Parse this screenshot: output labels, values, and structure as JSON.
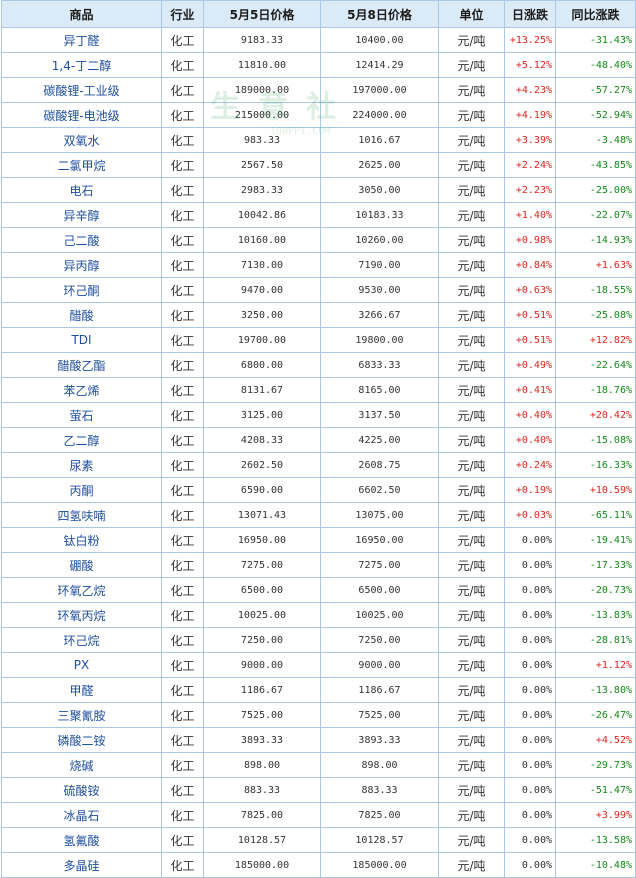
{
  "watermark": {
    "main": "生意社",
    "sub": "100PPI.COM"
  },
  "header": {
    "name": "商品",
    "industry": "行业",
    "price1": "5月5日价格",
    "price2": "5月8日价格",
    "unit": "单位",
    "day_change": "日涨跌",
    "yoy_change": "同比涨跌"
  },
  "colors": {
    "up": "#e0241c",
    "down": "#138a18",
    "header_bg": "#dbeaf7",
    "border": "#aac8e4",
    "name": "#1f4fa0"
  },
  "rows": [
    {
      "name": "异丁醛",
      "industry": "化工",
      "price1": "9183.33",
      "price2": "10400.00",
      "unit": "元/吨",
      "day": "+13.25%",
      "yoy": "-31.43%"
    },
    {
      "name": "1,4-丁二醇",
      "industry": "化工",
      "price1": "11810.00",
      "price2": "12414.29",
      "unit": "元/吨",
      "day": "+5.12%",
      "yoy": "-48.40%"
    },
    {
      "name": "碳酸锂-工业级",
      "industry": "化工",
      "price1": "189000.00",
      "price2": "197000.00",
      "unit": "元/吨",
      "day": "+4.23%",
      "yoy": "-57.27%"
    },
    {
      "name": "碳酸锂-电池级",
      "industry": "化工",
      "price1": "215000.00",
      "price2": "224000.00",
      "unit": "元/吨",
      "day": "+4.19%",
      "yoy": "-52.94%"
    },
    {
      "name": "双氧水",
      "industry": "化工",
      "price1": "983.33",
      "price2": "1016.67",
      "unit": "元/吨",
      "day": "+3.39%",
      "yoy": "-3.48%"
    },
    {
      "name": "二氯甲烷",
      "industry": "化工",
      "price1": "2567.50",
      "price2": "2625.00",
      "unit": "元/吨",
      "day": "+2.24%",
      "yoy": "-43.85%"
    },
    {
      "name": "电石",
      "industry": "化工",
      "price1": "2983.33",
      "price2": "3050.00",
      "unit": "元/吨",
      "day": "+2.23%",
      "yoy": "-25.00%"
    },
    {
      "name": "异辛醇",
      "industry": "化工",
      "price1": "10042.86",
      "price2": "10183.33",
      "unit": "元/吨",
      "day": "+1.40%",
      "yoy": "-22.07%"
    },
    {
      "name": "己二酸",
      "industry": "化工",
      "price1": "10160.00",
      "price2": "10260.00",
      "unit": "元/吨",
      "day": "+0.98%",
      "yoy": "-14.93%"
    },
    {
      "name": "异丙醇",
      "industry": "化工",
      "price1": "7130.00",
      "price2": "7190.00",
      "unit": "元/吨",
      "day": "+0.84%",
      "yoy": "+1.63%"
    },
    {
      "name": "环己酮",
      "industry": "化工",
      "price1": "9470.00",
      "price2": "9530.00",
      "unit": "元/吨",
      "day": "+0.63%",
      "yoy": "-18.55%"
    },
    {
      "name": "醋酸",
      "industry": "化工",
      "price1": "3250.00",
      "price2": "3266.67",
      "unit": "元/吨",
      "day": "+0.51%",
      "yoy": "-25.08%"
    },
    {
      "name": "TDI",
      "industry": "化工",
      "price1": "19700.00",
      "price2": "19800.00",
      "unit": "元/吨",
      "day": "+0.51%",
      "yoy": "+12.82%"
    },
    {
      "name": "醋酸乙酯",
      "industry": "化工",
      "price1": "6800.00",
      "price2": "6833.33",
      "unit": "元/吨",
      "day": "+0.49%",
      "yoy": "-22.64%"
    },
    {
      "name": "苯乙烯",
      "industry": "化工",
      "price1": "8131.67",
      "price2": "8165.00",
      "unit": "元/吨",
      "day": "+0.41%",
      "yoy": "-18.76%"
    },
    {
      "name": "萤石",
      "industry": "化工",
      "price1": "3125.00",
      "price2": "3137.50",
      "unit": "元/吨",
      "day": "+0.40%",
      "yoy": "+20.42%"
    },
    {
      "name": "乙二醇",
      "industry": "化工",
      "price1": "4208.33",
      "price2": "4225.00",
      "unit": "元/吨",
      "day": "+0.40%",
      "yoy": "-15.08%"
    },
    {
      "name": "尿素",
      "industry": "化工",
      "price1": "2602.50",
      "price2": "2608.75",
      "unit": "元/吨",
      "day": "+0.24%",
      "yoy": "-16.33%"
    },
    {
      "name": "丙酮",
      "industry": "化工",
      "price1": "6590.00",
      "price2": "6602.50",
      "unit": "元/吨",
      "day": "+0.19%",
      "yoy": "+10.59%"
    },
    {
      "name": "四氢呋喃",
      "industry": "化工",
      "price1": "13071.43",
      "price2": "13075.00",
      "unit": "元/吨",
      "day": "+0.03%",
      "yoy": "-65.11%"
    },
    {
      "name": "钛白粉",
      "industry": "化工",
      "price1": "16950.00",
      "price2": "16950.00",
      "unit": "元/吨",
      "day": "0.00%",
      "yoy": "-19.41%"
    },
    {
      "name": "硼酸",
      "industry": "化工",
      "price1": "7275.00",
      "price2": "7275.00",
      "unit": "元/吨",
      "day": "0.00%",
      "yoy": "-17.33%"
    },
    {
      "name": "环氧乙烷",
      "industry": "化工",
      "price1": "6500.00",
      "price2": "6500.00",
      "unit": "元/吨",
      "day": "0.00%",
      "yoy": "-20.73%"
    },
    {
      "name": "环氧丙烷",
      "industry": "化工",
      "price1": "10025.00",
      "price2": "10025.00",
      "unit": "元/吨",
      "day": "0.00%",
      "yoy": "-13.83%"
    },
    {
      "name": "环己烷",
      "industry": "化工",
      "price1": "7250.00",
      "price2": "7250.00",
      "unit": "元/吨",
      "day": "0.00%",
      "yoy": "-28.81%"
    },
    {
      "name": "PX",
      "industry": "化工",
      "price1": "9000.00",
      "price2": "9000.00",
      "unit": "元/吨",
      "day": "0.00%",
      "yoy": "+1.12%"
    },
    {
      "name": "甲醛",
      "industry": "化工",
      "price1": "1186.67",
      "price2": "1186.67",
      "unit": "元/吨",
      "day": "0.00%",
      "yoy": "-13.80%"
    },
    {
      "name": "三聚氰胺",
      "industry": "化工",
      "price1": "7525.00",
      "price2": "7525.00",
      "unit": "元/吨",
      "day": "0.00%",
      "yoy": "-26.47%"
    },
    {
      "name": "磷酸二铵",
      "industry": "化工",
      "price1": "3893.33",
      "price2": "3893.33",
      "unit": "元/吨",
      "day": "0.00%",
      "yoy": "+4.52%"
    },
    {
      "name": "烧碱",
      "industry": "化工",
      "price1": "898.00",
      "price2": "898.00",
      "unit": "元/吨",
      "day": "0.00%",
      "yoy": "-29.73%"
    },
    {
      "name": "硫酸铵",
      "industry": "化工",
      "price1": "883.33",
      "price2": "883.33",
      "unit": "元/吨",
      "day": "0.00%",
      "yoy": "-51.47%"
    },
    {
      "name": "冰晶石",
      "industry": "化工",
      "price1": "7825.00",
      "price2": "7825.00",
      "unit": "元/吨",
      "day": "0.00%",
      "yoy": "+3.99%"
    },
    {
      "name": "氢氟酸",
      "industry": "化工",
      "price1": "10128.57",
      "price2": "10128.57",
      "unit": "元/吨",
      "day": "0.00%",
      "yoy": "-13.58%"
    },
    {
      "name": "多晶硅",
      "industry": "化工",
      "price1": "185000.00",
      "price2": "185000.00",
      "unit": "元/吨",
      "day": "0.00%",
      "yoy": "-10.48%"
    }
  ]
}
